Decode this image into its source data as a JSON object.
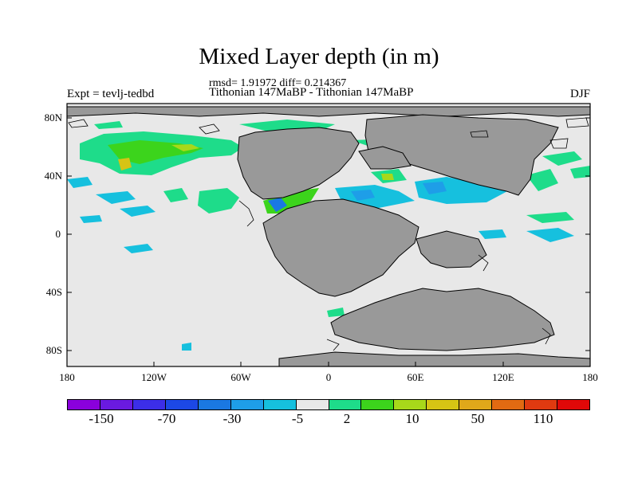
{
  "header": {
    "title": "Mixed Layer depth (in m)",
    "stats": "rmsd= 1.91972 diff= 0.214367",
    "period": "Tithonian 147MaBP - Tithonian 147MaBP",
    "experiment": "Expt = tevlj-tedbd",
    "season": "DJF"
  },
  "axes": {
    "lat_labels": [
      "80N",
      "40N",
      "0",
      "40S",
      "80S"
    ],
    "lon_labels": [
      "180",
      "120W",
      "60W",
      "0",
      "60E",
      "120E",
      "180"
    ]
  },
  "colorbar": {
    "colors": [
      "#8a00dc",
      "#6a1ae0",
      "#3c2ee8",
      "#1c48e6",
      "#1a78e2",
      "#1e9ee8",
      "#16c0de",
      "#e8e8e8",
      "#1edc8a",
      "#3cd41c",
      "#a8d81a",
      "#d6c414",
      "#e0a81a",
      "#e26a12",
      "#e03a10",
      "#e00808"
    ],
    "labels": [
      "-150",
      "-70",
      "-30",
      "-5",
      "2",
      "10",
      "50",
      "110"
    ]
  },
  "map_colors": {
    "ocean": "#e8e8e8",
    "land": "#999999",
    "positive_small": "#1edc8a",
    "positive_mid": "#3cd41c",
    "positive_high": "#a8d81a",
    "positive_higher": "#d6c414",
    "negative_small": "#16c0de",
    "negative_mid": "#1e9ee8",
    "negative_high": "#1a78e2"
  }
}
